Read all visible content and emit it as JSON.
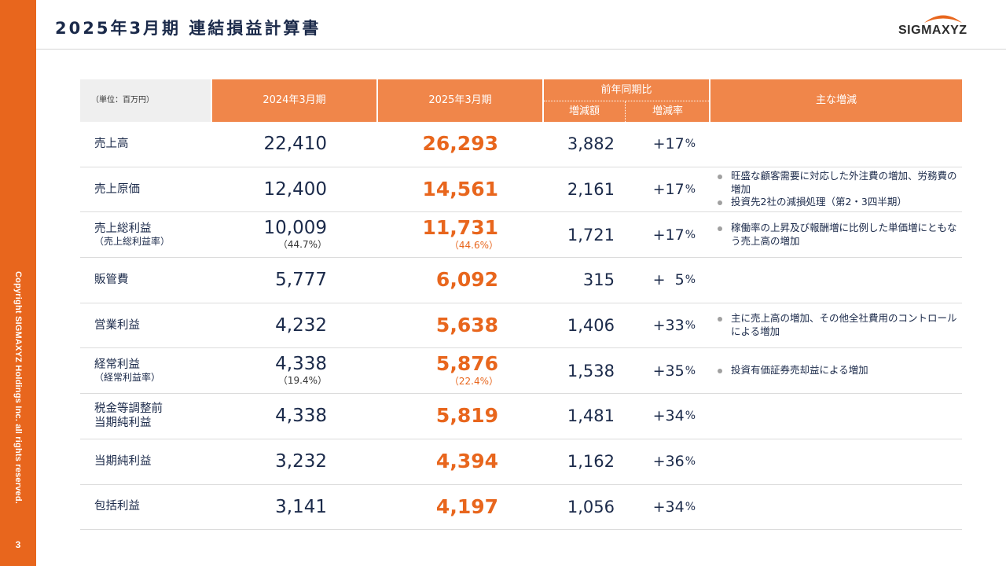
{
  "page": {
    "title": "2025年3月期 連結損益計算書",
    "logo_text": "SIGMAXYZ",
    "copyright": "Copyright SIGMAXYZ Holdings Inc. all rights reserved.",
    "page_number": "3",
    "colors": {
      "accent": "#e8661d",
      "header": "#f0864a",
      "navy": "#1b2a4a"
    }
  },
  "table": {
    "unit": "（単位：百万円）",
    "col_2024": "2024年3月期",
    "col_2025": "2025年3月期",
    "col_yoy": "前年同期比",
    "col_diff": "増減額",
    "col_rate": "増減率",
    "col_main": "主な増減",
    "rows": [
      {
        "label": "売上高",
        "sub": "",
        "v2024": "22,410",
        "p2024": "",
        "v2025": "26,293",
        "p2025": "",
        "diff": "3,882",
        "rate": "+17",
        "notes": []
      },
      {
        "label": "売上原価",
        "sub": "",
        "v2024": "12,400",
        "p2024": "",
        "v2025": "14,561",
        "p2025": "",
        "diff": "2,161",
        "rate": "+17",
        "notes": [
          "旺盛な顧客需要に対応した外注費の増加、労務費の増加",
          "投資先2社の減損処理（第2・3四半期）"
        ]
      },
      {
        "label": "売上総利益",
        "sub": "（売上総利益率）",
        "v2024": "10,009",
        "p2024": "（44.7%）",
        "v2025": "11,731",
        "p2025": "（44.6%）",
        "diff": "1,721",
        "rate": "+17",
        "notes": [
          "稼働率の上昇及び報酬増に比例した単価増にともなう売上高の増加"
        ]
      },
      {
        "label": "販管費",
        "sub": "",
        "v2024": "5,777",
        "p2024": "",
        "v2025": "6,092",
        "p2025": "",
        "diff": "315",
        "rate": "+  5",
        "notes": []
      },
      {
        "label": "営業利益",
        "sub": "",
        "v2024": "4,232",
        "p2024": "",
        "v2025": "5,638",
        "p2025": "",
        "diff": "1,406",
        "rate": "+33",
        "notes": [
          "主に売上高の増加、その他全社費用のコントロールによる増加"
        ]
      },
      {
        "label": "経常利益",
        "sub": "（経常利益率）",
        "v2024": "4,338",
        "p2024": "（19.4%）",
        "v2025": "5,876",
        "p2025": "（22.4%）",
        "diff": "1,538",
        "rate": "+35",
        "notes": [
          "投資有価証券売却益による増加"
        ]
      },
      {
        "label": "税金等調整前",
        "sub": "当期純利益",
        "v2024": "4,338",
        "p2024": "",
        "v2025": "5,819",
        "p2025": "",
        "diff": "1,481",
        "rate": "+34",
        "notes": []
      },
      {
        "label": "当期純利益",
        "sub": "",
        "v2024": "3,232",
        "p2024": "",
        "v2025": "4,394",
        "p2025": "",
        "diff": "1,162",
        "rate": "+36",
        "notes": []
      },
      {
        "label": "包括利益",
        "sub": "",
        "v2024": "3,141",
        "p2024": "",
        "v2025": "4,197",
        "p2025": "",
        "diff": "1,056",
        "rate": "+34",
        "notes": []
      }
    ]
  }
}
